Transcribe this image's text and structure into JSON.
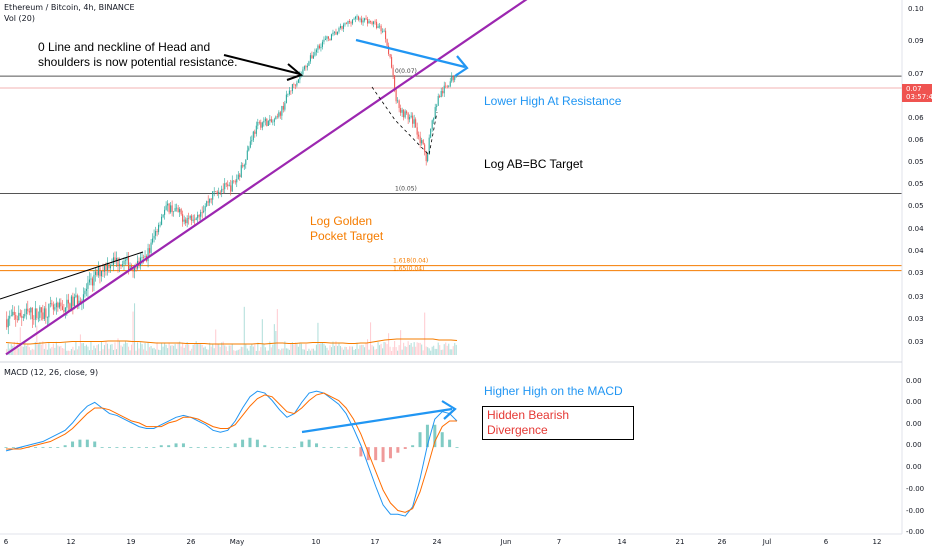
{
  "header": {
    "symbol": "Ethereum / Bitcoin, 4h, BINANCE",
    "volume": "Vol (20)",
    "macd": "MACD (12, 26, close, 9)"
  },
  "annotations": {
    "neckline": "0 Line and neckline of Head and shoulders is now potential resistance.",
    "lower_high": "Lower High At Resistance",
    "ab_bc": "Log AB=BC Target",
    "golden_pocket": "Log Golden Pocket Target",
    "higher_high": "Higher High on the MACD",
    "divergence": "Hidden Bearish Divergence"
  },
  "fib_labels": [
    "0(0.07)",
    "1(0.05)",
    "1.618(0.04)",
    "1.65(0.04)"
  ],
  "price_tag": {
    "price": "0.07",
    "time": "03:57:4"
  },
  "colors": {
    "up": "#26a69a",
    "down": "#ef5350",
    "trend": "#9c27b0",
    "arrow": "#2196f3",
    "fib": "#f57c00"
  },
  "chart_data": [
    {
      "type": "candlestick",
      "title": "Ethereum / Bitcoin, 4h, BINANCE",
      "x_ticks": [
        "6",
        "12",
        "19",
        "26",
        "May",
        "10",
        "17",
        "24",
        "Jun",
        "7",
        "14",
        "21",
        "26",
        "Jul",
        "6",
        "12"
      ],
      "y_ticks": [
        "0.10",
        "0.09",
        "0.07",
        "0.07",
        "0.06",
        "0.06",
        "0.05",
        "0.05",
        "0.05",
        "0.04",
        "0.04",
        "0.03",
        "0.03",
        "0.03",
        "0.03"
      ],
      "trend_close": [
        0.0329,
        0.033,
        0.0332,
        0.0334,
        0.0335,
        0.0334,
        0.0337,
        0.0339,
        0.0338,
        0.034,
        0.0343,
        0.0347,
        0.0352,
        0.0358,
        0.0367,
        0.0378,
        0.0386,
        0.0392,
        0.0395,
        0.0394,
        0.0392,
        0.0389,
        0.0391,
        0.0397,
        0.0412,
        0.0436,
        0.0458,
        0.0467,
        0.0463,
        0.0455,
        0.045,
        0.0454,
        0.046,
        0.0468,
        0.0481,
        0.0492,
        0.0496,
        0.0494,
        0.0504,
        0.0522,
        0.0551,
        0.0585,
        0.0603,
        0.061,
        0.0606,
        0.0612,
        0.0635,
        0.0666,
        0.0686,
        0.0705,
        0.0728,
        0.0748,
        0.0771,
        0.0784,
        0.0792,
        0.0804,
        0.0817,
        0.083,
        0.0841,
        0.0837,
        0.0835,
        0.0829,
        0.0819,
        0.0806,
        0.0741,
        0.0651,
        0.0627,
        0.0618,
        0.0609,
        0.0575,
        0.0543,
        0.0611,
        0.0657,
        0.0674,
        0.0691,
        0.0708
      ],
      "volume_ma": [
        0.0025,
        0.0024,
        0.0023,
        0.0022,
        0.0022,
        0.0023,
        0.0024,
        0.0025,
        0.0025,
        0.0025,
        0.0026,
        0.0027,
        0.0027,
        0.0027,
        0.0027,
        0.0027,
        0.0027,
        0.0028,
        0.0028,
        0.0028,
        0.0028,
        0.0027,
        0.0027,
        0.0026,
        0.0025,
        0.0024,
        0.0024,
        0.0024,
        0.0024,
        0.0024,
        0.0023,
        0.0023,
        0.0023,
        0.0023,
        0.0022,
        0.0022,
        0.0022,
        0.0022,
        0.0022,
        0.0022,
        0.0022,
        0.0022,
        0.0023,
        0.0022,
        0.0023,
        0.0024,
        0.0024,
        0.0023,
        0.0023,
        0.0024,
        0.0024,
        0.0025,
        0.0025,
        0.0025,
        0.0024,
        0.0024,
        0.0024,
        0.0023,
        0.0023,
        0.0024,
        0.0024,
        0.0026,
        0.0028,
        0.003,
        0.0031,
        0.0032,
        0.0032,
        0.0032,
        0.0032,
        0.0032,
        0.0032,
        0.0032,
        0.003,
        0.003,
        0.003,
        0.0029
      ],
      "fib_levels": [
        0.0702,
        0.0487,
        0.0389,
        0.0383
      ],
      "resistance_line": {
        "from": [
          0.0,
          0.0295
        ],
        "to": [
          95.0,
          0.0999
        ]
      },
      "ylim": [
        0.03,
        0.1
      ]
    },
    {
      "type": "line",
      "title": "MACD (12, 26, close, 9)",
      "y_ticks": [
        "0.00",
        "0.00",
        "0.00",
        "0.00",
        "0.00",
        "-0.00",
        "-0.00",
        "-0.00"
      ],
      "series": [
        {
          "values": [
            -0.0002,
            -0.0001,
            0.0,
            0.0001,
            0.0002,
            0.0003,
            0.0005,
            0.0007,
            0.0009,
            0.0013,
            0.0018,
            0.0022,
            0.0024,
            0.0021,
            0.0018,
            0.0017,
            0.0015,
            0.0013,
            0.0011,
            0.001,
            0.001,
            0.0012,
            0.0014,
            0.0016,
            0.0017,
            0.0016,
            0.0014,
            0.0012,
            0.0009,
            0.0008,
            0.0009,
            0.0014,
            0.0021,
            0.0027,
            0.003,
            0.0029,
            0.0025,
            0.002,
            0.0016,
            0.0018,
            0.0024,
            0.0029,
            0.003,
            0.0029,
            0.0026,
            0.0023,
            0.0018,
            0.001,
            0.0001,
            -0.001,
            -0.0021,
            -0.0031,
            -0.0036,
            -0.0036,
            -0.0037,
            -0.0032,
            -0.0017,
            0.0001,
            0.0015,
            0.0019,
            0.0018,
            0.0014
          ]
        },
        {
          "values": [
            -0.0001,
            -0.0001,
            -0.0001,
            0.0,
            0.0001,
            0.0002,
            0.0003,
            0.0005,
            0.0007,
            0.001,
            0.0014,
            0.0018,
            0.0021,
            0.0021,
            0.002,
            0.0018,
            0.0016,
            0.0014,
            0.0013,
            0.0011,
            0.0011,
            0.0011,
            0.0013,
            0.0014,
            0.0016,
            0.0016,
            0.0015,
            0.0013,
            0.0011,
            0.001,
            0.001,
            0.0012,
            0.0017,
            0.0022,
            0.0026,
            0.0028,
            0.0027,
            0.0023,
            0.0019,
            0.0018,
            0.0021,
            0.0025,
            0.0028,
            0.0029,
            0.0027,
            0.0025,
            0.0021,
            0.0015,
            0.0007,
            -0.0003,
            -0.0013,
            -0.0023,
            -0.003,
            -0.0034,
            -0.0035,
            -0.0033,
            -0.0024,
            -0.0011,
            0.0003,
            0.0011,
            0.0014,
            0.0014
          ]
        }
      ],
      "histogram": [
        0.0,
        0.0,
        0.0,
        0.0,
        0.0,
        0.0,
        0.0,
        0.0,
        0.0001,
        0.0003,
        0.0004,
        0.0004,
        0.0003,
        0.0,
        0.0,
        0.0,
        0.0,
        0.0,
        0.0,
        0.0,
        0.0,
        0.0001,
        0.0001,
        0.0002,
        0.0002,
        0.0,
        0.0,
        0.0,
        0.0,
        0.0,
        0.0,
        0.0002,
        0.0004,
        0.0005,
        0.0004,
        0.0001,
        0.0,
        0.0,
        0.0,
        0.0,
        0.0003,
        0.0004,
        0.0002,
        0.0,
        0.0,
        0.0,
        0.0,
        0.0,
        -0.0005,
        -0.0007,
        -0.0007,
        -0.0008,
        -0.0006,
        -0.0003,
        -0.0001,
        0.0001,
        0.0008,
        0.0012,
        0.0012,
        0.0008,
        0.0004,
        0.0
      ],
      "ylim": [
        -0.0045,
        0.0036
      ]
    }
  ]
}
